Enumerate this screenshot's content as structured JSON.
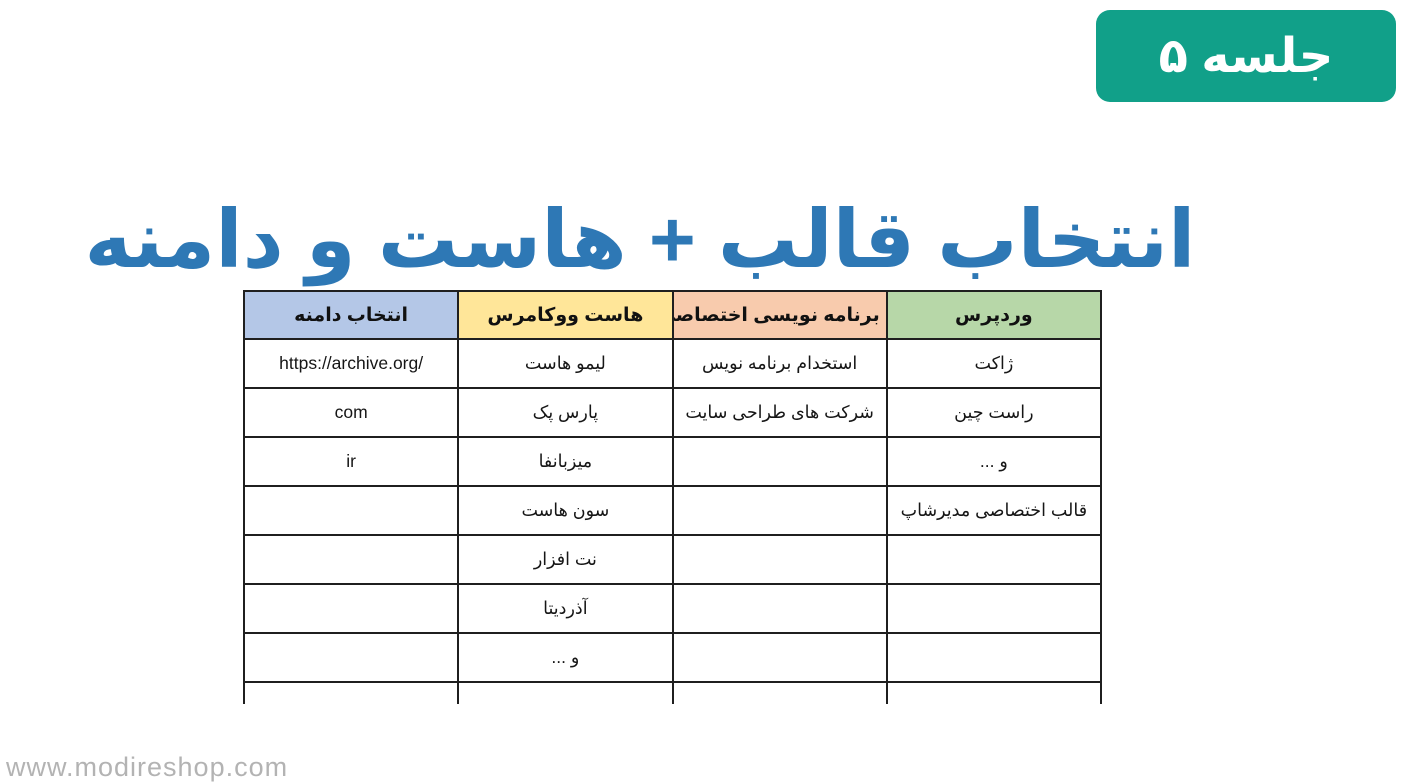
{
  "badge": {
    "label": "جلسه ۵",
    "bg_color": "#11a089",
    "text_color": "#ffffff"
  },
  "title": {
    "text": "انتخاب قالب + هاست و دامنه",
    "color": "#2e78b5"
  },
  "table": {
    "columns": [
      {
        "label": "وردپرس",
        "header_color": "#b7d7a8"
      },
      {
        "label": "برنامه نویسی اختصاصی",
        "header_color": "#f8cbad"
      },
      {
        "label": "هاست ووکامرس",
        "header_color": "#ffe699"
      },
      {
        "label": "انتخاب دامنه",
        "header_color": "#b4c7e7"
      }
    ],
    "rows": [
      {
        "cells": [
          "ژاکت",
          "استخدام برنامه نویس",
          "لیمو هاست",
          "https://archive.org/"
        ]
      },
      {
        "cells": [
          "راست چین",
          "شرکت های طراحی سایت",
          "پارس پک",
          "com"
        ]
      },
      {
        "cells": [
          "و ...",
          "",
          "میزبانفا",
          "ir"
        ]
      },
      {
        "cells": [
          "قالب اختصاصی مدیرشاپ",
          "",
          "سون هاست",
          ""
        ]
      },
      {
        "cells": [
          "",
          "",
          "نت افزار",
          ""
        ]
      },
      {
        "cells": [
          "",
          "",
          "آذردیتا",
          ""
        ]
      },
      {
        "cells": [
          "",
          "",
          "و ...",
          ""
        ]
      },
      {
        "cells": [
          "",
          "",
          "",
          ""
        ]
      }
    ]
  },
  "watermark": {
    "text": "www.modireshop.com",
    "color": "#b3b3b3"
  }
}
